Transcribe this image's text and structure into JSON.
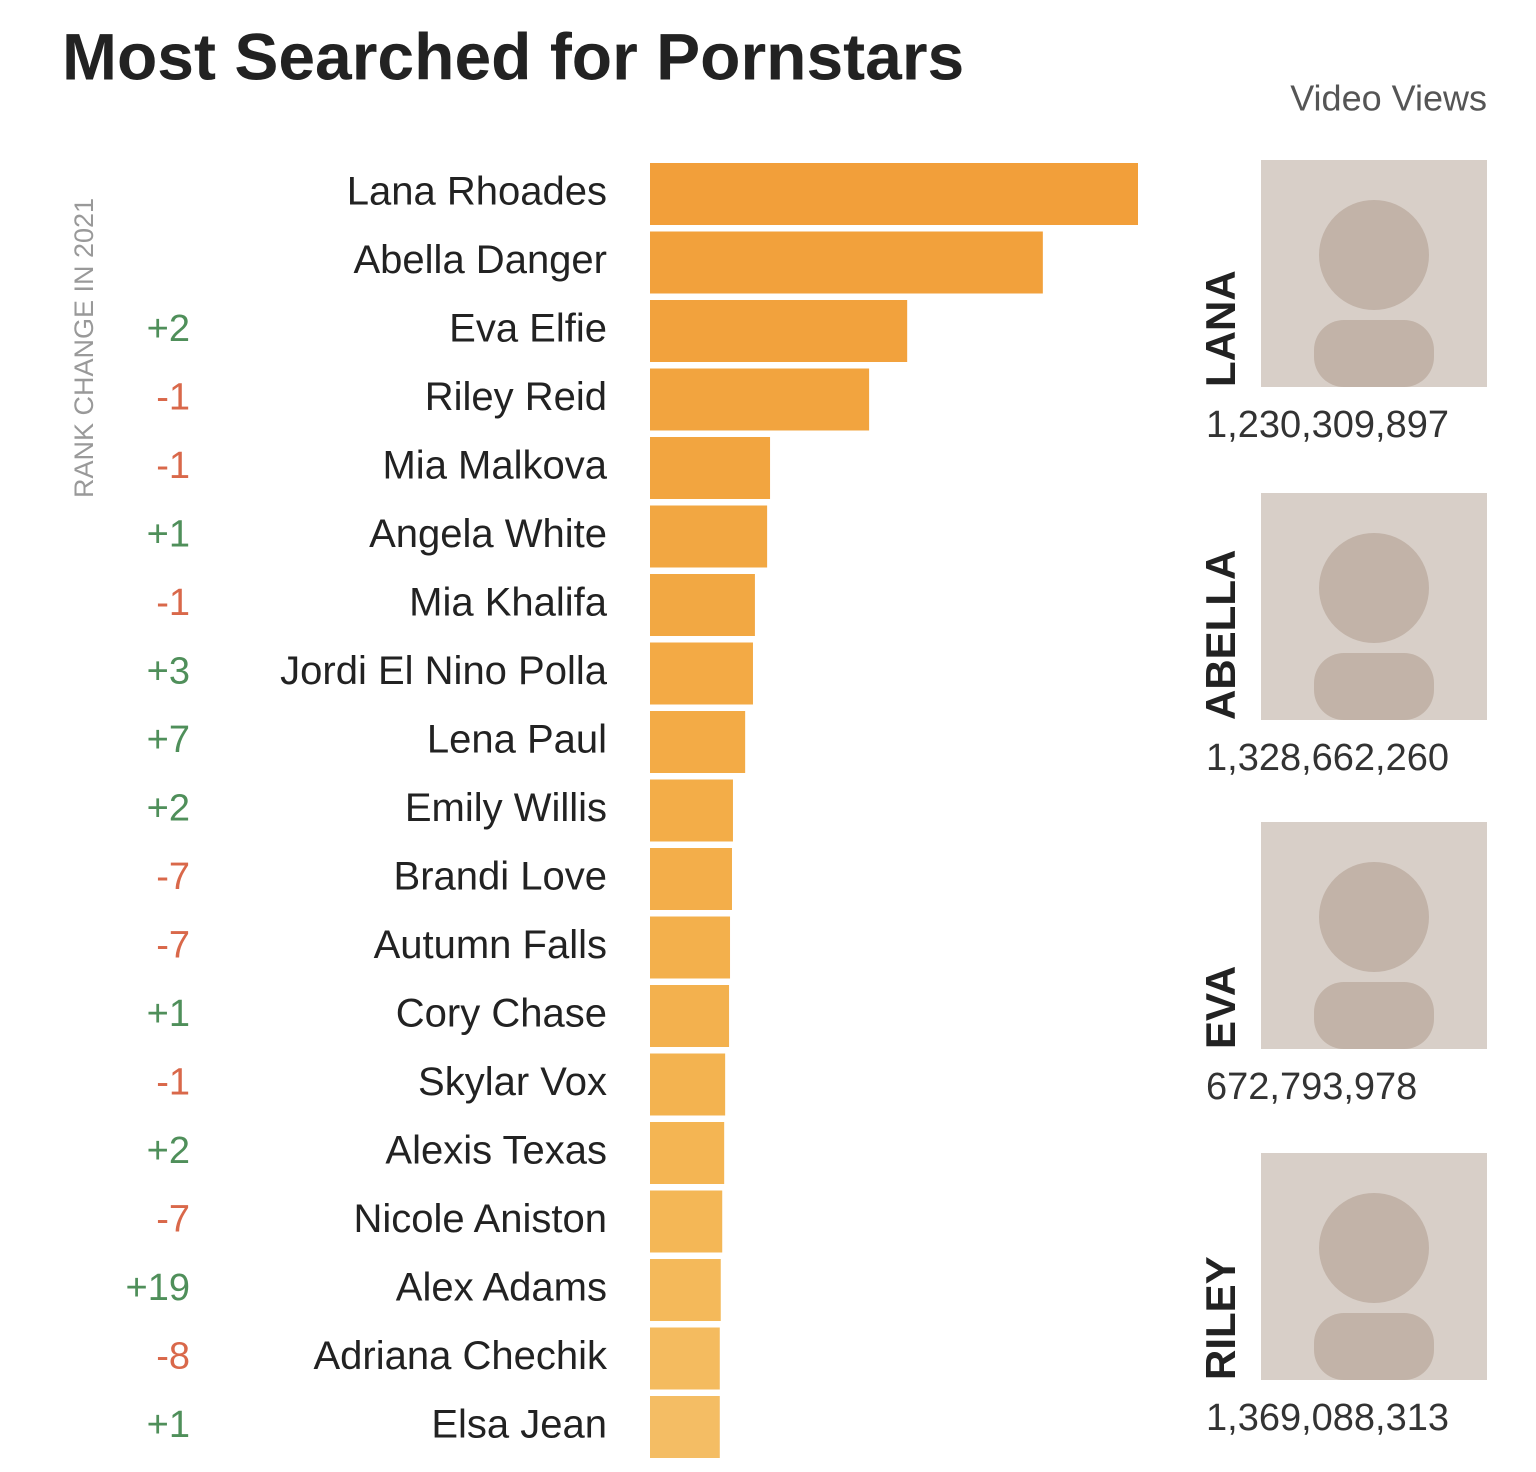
{
  "chart_data": {
    "type": "bar",
    "title": "Most Searched for Pornstars",
    "rank_change_label": "RANK CHANGE IN 2021",
    "highlight_header": "Video Views",
    "categories": [
      "Lana Rhoades",
      "Abella Danger",
      "Eva Elfie",
      "Riley Reid",
      "Mia Malkova",
      "Angela White",
      "Mia Khalifa",
      "Jordi El Nino Polla",
      "Lena Paul",
      "Emily Willis",
      "Brandi Love",
      "Autumn Falls",
      "Cory Chase",
      "Skylar Vox",
      "Alexis Texas",
      "Nicole Aniston",
      "Alex Adams",
      "Adriana Chechik",
      "Elsa Jean"
    ],
    "rank_changes": [
      null,
      null,
      "+2",
      "-1",
      "-1",
      "+1",
      "-1",
      "+3",
      "+7",
      "+2",
      "-7",
      "-7",
      "+1",
      "-1",
      "+2",
      "-7",
      "+19",
      "-8",
      "+1"
    ],
    "values": [
      100,
      80.5,
      52.7,
      44.9,
      24.6,
      24,
      21.5,
      21.1,
      19.5,
      17,
      16.8,
      16.4,
      16.2,
      15.4,
      15.2,
      14.8,
      14.5,
      14.3,
      14.3
    ],
    "colors": [
      "#f29f3a",
      "#f2a13c",
      "#f2a23d",
      "#f2a43f",
      "#f2a540",
      "#f2a742",
      "#f2a843",
      "#f3aa45",
      "#f3ab46",
      "#f3ad48",
      "#f3ae4a",
      "#f3b04c",
      "#f3b14e",
      "#f3b350",
      "#f4b553",
      "#f4b756",
      "#f4b95a",
      "#f4bb5f",
      "#f4bd64"
    ],
    "highlights": [
      {
        "name": "LANA",
        "views": "1,230,309,897"
      },
      {
        "name": "ABELLA",
        "views": "1,328,662,260"
      },
      {
        "name": "EVA",
        "views": "672,793,978"
      },
      {
        "name": "RILEY",
        "views": "1,369,088,313"
      }
    ]
  }
}
